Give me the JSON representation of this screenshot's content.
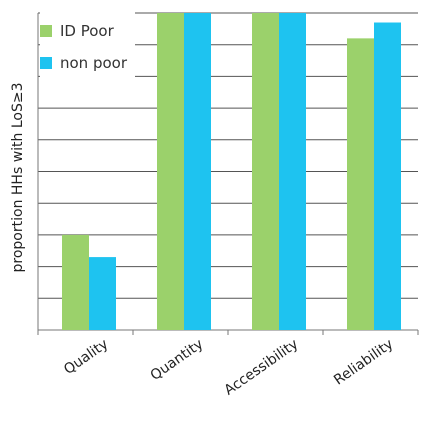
{
  "chart_data": {
    "type": "bar",
    "categories": [
      "Quality",
      "Quantity",
      "Accessibility",
      "Reliability"
    ],
    "series": [
      {
        "name": "ID Poor",
        "values": [
          0.3,
          1.0,
          1.0,
          0.92
        ],
        "color": "#9bd16b"
      },
      {
        "name": "non poor",
        "values": [
          0.23,
          1.0,
          1.0,
          0.97
        ],
        "color": "#1ec3f0"
      }
    ],
    "title": "",
    "xlabel": "",
    "ylabel": "proportion HHs with LoS≥3",
    "ylim": [
      0,
      1.0
    ],
    "grid": true,
    "legend_position": "top-left"
  }
}
